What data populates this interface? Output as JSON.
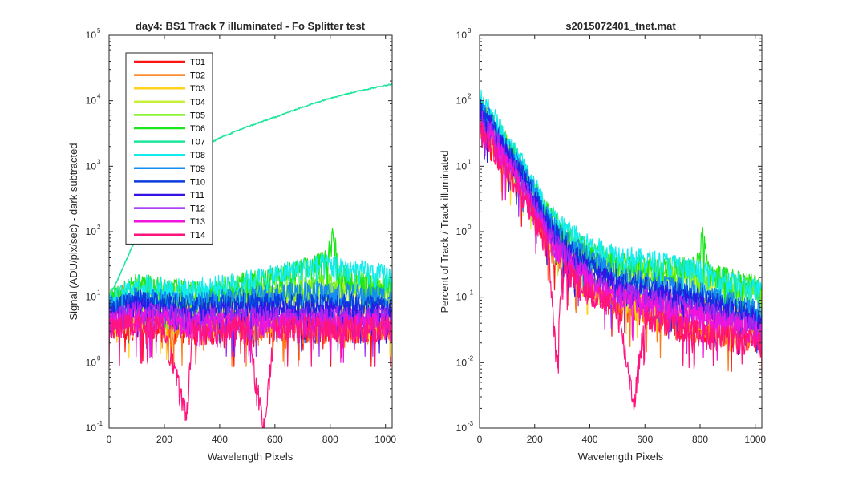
{
  "chart_data": [
    {
      "type": "line",
      "title": "day4: BS1  Track 7 illuminated - Fo Splitter test",
      "xlabel": "Wavelength Pixels",
      "ylabel": "Signal (ADU/pix/sec) - dark subtracted",
      "xlim": [
        0,
        1024
      ],
      "ylim": [
        0.1,
        100000
      ],
      "yscale": "log",
      "xticks": [
        0,
        200,
        400,
        600,
        800,
        1000
      ],
      "yticks": [
        {
          "base": "10",
          "exp": "-1",
          "value": 0.1
        },
        {
          "base": "10",
          "exp": "0",
          "value": 1
        },
        {
          "base": "10",
          "exp": "1",
          "value": 10
        },
        {
          "base": "10",
          "exp": "2",
          "value": 100
        },
        {
          "base": "10",
          "exp": "3",
          "value": 1000
        },
        {
          "base": "10",
          "exp": "4",
          "value": 10000
        },
        {
          "base": "10",
          "exp": "5",
          "value": 100000
        }
      ],
      "legend_position": "top-left",
      "grid": false,
      "series": [
        {
          "name": "T01",
          "color": "#ff1414",
          "x": [
            0,
            100,
            200,
            300,
            400,
            500,
            600,
            700,
            800,
            900,
            1024
          ],
          "values": [
            3.5,
            4,
            3.5,
            3.2,
            3.5,
            3.5,
            3.5,
            3.5,
            3.5,
            3.5,
            3.5
          ]
        },
        {
          "name": "T02",
          "color": "#ff7a14",
          "x": [
            0,
            40,
            100,
            200,
            300,
            400,
            500,
            600,
            700,
            800,
            900,
            1024
          ],
          "values": [
            4,
            12,
            5,
            4,
            3.5,
            3.5,
            3.5,
            3.5,
            3.5,
            3.5,
            3.5,
            3.5
          ]
        },
        {
          "name": "T03",
          "color": "#ffd21e",
          "x": [
            0,
            100,
            200,
            300,
            400,
            500,
            600,
            700,
            800,
            900,
            1024
          ],
          "values": [
            4,
            5,
            4.5,
            4,
            4.5,
            5,
            5,
            5,
            5,
            5,
            5
          ]
        },
        {
          "name": "T04",
          "color": "#c8f03c",
          "x": [
            0,
            100,
            200,
            300,
            400,
            500,
            600,
            700,
            800,
            900,
            1024
          ],
          "values": [
            6,
            9,
            8,
            7,
            8,
            9,
            10,
            11,
            12,
            12,
            11
          ]
        },
        {
          "name": "T05",
          "color": "#78f014",
          "x": [
            0,
            100,
            200,
            300,
            400,
            500,
            600,
            700,
            800,
            900,
            1024
          ],
          "values": [
            8,
            14,
            12,
            10,
            11,
            12,
            13,
            15,
            16,
            15,
            14
          ]
        },
        {
          "name": "T06",
          "color": "#1ee61e",
          "x": [
            0,
            100,
            200,
            300,
            400,
            500,
            600,
            700,
            780,
            800,
            810,
            830,
            900,
            1024
          ],
          "values": [
            10,
            16,
            14,
            12,
            14,
            17,
            21,
            27,
            35,
            60,
            100,
            25,
            20,
            16
          ]
        },
        {
          "name": "T07",
          "color": "#1ee69b",
          "x": [
            0,
            30,
            50,
            80,
            100,
            150,
            200,
            300,
            400,
            500,
            600,
            700,
            800,
            900,
            1024
          ],
          "values": [
            10,
            18,
            28,
            55,
            80,
            300,
            700,
            1600,
            2700,
            4000,
            5600,
            8000,
            11000,
            14000,
            18000
          ]
        },
        {
          "name": "T08",
          "color": "#14ebeb",
          "x": [
            0,
            100,
            200,
            300,
            400,
            500,
            600,
            700,
            800,
            900,
            1024
          ],
          "values": [
            8,
            16,
            14,
            13,
            15,
            18,
            22,
            28,
            32,
            26,
            21
          ]
        },
        {
          "name": "T09",
          "color": "#148cf0",
          "x": [
            0,
            100,
            200,
            300,
            400,
            500,
            600,
            700,
            800,
            900,
            1024
          ],
          "values": [
            7,
            10,
            9,
            8,
            9,
            10,
            11,
            12,
            12,
            11,
            10
          ]
        },
        {
          "name": "T10",
          "color": "#0a3cdc",
          "x": [
            0,
            100,
            200,
            300,
            400,
            500,
            600,
            700,
            800,
            900,
            1024
          ],
          "values": [
            6,
            9,
            8,
            7,
            8,
            8,
            8,
            8,
            8,
            8,
            7
          ]
        },
        {
          "name": "T11",
          "color": "#3214e6",
          "x": [
            0,
            100,
            200,
            300,
            400,
            500,
            600,
            700,
            800,
            900,
            1024
          ],
          "values": [
            5,
            7,
            6,
            5.5,
            6,
            6,
            6,
            6,
            6,
            6,
            5.5
          ]
        },
        {
          "name": "T12",
          "color": "#a028f0",
          "x": [
            0,
            100,
            200,
            300,
            400,
            500,
            600,
            700,
            800,
            900,
            1024
          ],
          "values": [
            4.5,
            6,
            5.5,
            5,
            5,
            5,
            5,
            5,
            5,
            5,
            5
          ]
        },
        {
          "name": "T13",
          "color": "#f014dc",
          "x": [
            0,
            100,
            200,
            300,
            400,
            500,
            600,
            700,
            800,
            900,
            1024
          ],
          "values": [
            4,
            5,
            4.5,
            4,
            4,
            4,
            4,
            4,
            4,
            4,
            4
          ]
        },
        {
          "name": "T14",
          "color": "#ff147d",
          "x": [
            0,
            100,
            200,
            280,
            300,
            400,
            500,
            560,
            600,
            700,
            800,
            900,
            1024
          ],
          "values": [
            3.5,
            4,
            3.5,
            0.14,
            3.2,
            3.5,
            3.5,
            0.1,
            3.5,
            3.5,
            3.5,
            3.5,
            3.5
          ]
        }
      ]
    },
    {
      "type": "line",
      "title": "s2015072401_tnet.mat",
      "xlabel": "Wavelength Pixels",
      "ylabel": "Percent of Track / Track illuminated",
      "xlim": [
        0,
        1024
      ],
      "ylim": [
        0.001,
        1000
      ],
      "yscale": "log",
      "xticks": [
        0,
        200,
        400,
        600,
        800,
        1000
      ],
      "yticks": [
        {
          "base": "10",
          "exp": "-3",
          "value": 0.001
        },
        {
          "base": "10",
          "exp": "-2",
          "value": 0.01
        },
        {
          "base": "10",
          "exp": "-1",
          "value": 0.1
        },
        {
          "base": "10",
          "exp": "0",
          "value": 1
        },
        {
          "base": "10",
          "exp": "1",
          "value": 10
        },
        {
          "base": "10",
          "exp": "2",
          "value": 100
        },
        {
          "base": "10",
          "exp": "3",
          "value": 1000
        }
      ],
      "grid": false,
      "series": [
        {
          "name": "T01",
          "color": "#ff1414",
          "x": [
            0,
            50,
            100,
            150,
            200,
            250,
            300,
            400,
            500,
            600,
            700,
            800,
            900,
            1024
          ],
          "values": [
            35,
            20,
            10,
            5,
            2,
            0.7,
            0.35,
            0.15,
            0.08,
            0.06,
            0.04,
            0.035,
            0.03,
            0.025
          ]
        },
        {
          "name": "T02",
          "color": "#ff7a14",
          "x": [
            0,
            30,
            50,
            100,
            150,
            200,
            250,
            300,
            400,
            500,
            600,
            700,
            800,
            900,
            1024
          ],
          "values": [
            40,
            60,
            25,
            10,
            5,
            2,
            0.7,
            0.35,
            0.15,
            0.08,
            0.06,
            0.04,
            0.035,
            0.03,
            0.025
          ]
        },
        {
          "name": "T03",
          "color": "#ffd21e",
          "x": [
            0,
            50,
            100,
            150,
            200,
            250,
            300,
            400,
            500,
            600,
            700,
            800,
            900,
            1024
          ],
          "values": [
            45,
            25,
            12,
            6,
            2.5,
            0.9,
            0.45,
            0.2,
            0.12,
            0.09,
            0.08,
            0.07,
            0.06,
            0.05
          ]
        },
        {
          "name": "T04",
          "color": "#c8f03c",
          "x": [
            0,
            50,
            100,
            150,
            200,
            250,
            300,
            400,
            500,
            600,
            700,
            800,
            900,
            1024
          ],
          "values": [
            60,
            35,
            16,
            8,
            3.5,
            1.3,
            0.7,
            0.35,
            0.25,
            0.22,
            0.2,
            0.18,
            0.15,
            0.1
          ]
        },
        {
          "name": "T05",
          "color": "#78f014",
          "x": [
            0,
            50,
            100,
            150,
            200,
            250,
            300,
            400,
            500,
            600,
            700,
            800,
            900,
            1024
          ],
          "values": [
            70,
            40,
            20,
            10,
            4,
            1.6,
            0.9,
            0.45,
            0.3,
            0.27,
            0.25,
            0.22,
            0.18,
            0.12
          ]
        },
        {
          "name": "T06",
          "color": "#1ee61e",
          "x": [
            0,
            50,
            100,
            150,
            200,
            250,
            300,
            400,
            500,
            600,
            700,
            780,
            800,
            810,
            830,
            900,
            1024
          ],
          "values": [
            80,
            45,
            22,
            11,
            4.5,
            1.8,
            1,
            0.5,
            0.35,
            0.3,
            0.28,
            0.3,
            0.5,
            0.9,
            0.25,
            0.2,
            0.15
          ]
        },
        {
          "name": "T08",
          "color": "#14ebeb",
          "x": [
            0,
            50,
            100,
            150,
            200,
            250,
            300,
            400,
            500,
            600,
            700,
            800,
            900,
            1024
          ],
          "values": [
            120,
            60,
            25,
            12,
            5,
            2,
            1.2,
            0.6,
            0.45,
            0.38,
            0.32,
            0.25,
            0.18,
            0.12
          ]
        },
        {
          "name": "T09",
          "color": "#148cf0",
          "x": [
            0,
            50,
            100,
            150,
            200,
            250,
            300,
            400,
            500,
            600,
            700,
            800,
            900,
            1024
          ],
          "values": [
            90,
            45,
            20,
            9,
            4,
            1.5,
            0.8,
            0.4,
            0.22,
            0.18,
            0.15,
            0.12,
            0.09,
            0.06
          ]
        },
        {
          "name": "T10",
          "color": "#0a3cdc",
          "x": [
            0,
            50,
            100,
            150,
            200,
            250,
            300,
            400,
            500,
            600,
            700,
            800,
            900,
            1024
          ],
          "values": [
            75,
            40,
            18,
            8,
            3.5,
            1.3,
            0.7,
            0.3,
            0.18,
            0.14,
            0.12,
            0.1,
            0.07,
            0.05
          ]
        },
        {
          "name": "T11",
          "color": "#3214e6",
          "x": [
            0,
            50,
            100,
            150,
            200,
            250,
            300,
            400,
            500,
            600,
            700,
            800,
            900,
            1024
          ],
          "values": [
            65,
            35,
            15,
            7,
            3,
            1.1,
            0.6,
            0.25,
            0.15,
            0.12,
            0.1,
            0.08,
            0.06,
            0.04
          ]
        },
        {
          "name": "T12",
          "color": "#a028f0",
          "x": [
            0,
            50,
            100,
            150,
            200,
            250,
            300,
            400,
            500,
            600,
            700,
            800,
            900,
            1024
          ],
          "values": [
            55,
            30,
            13,
            6,
            2.5,
            0.9,
            0.5,
            0.2,
            0.12,
            0.1,
            0.08,
            0.06,
            0.05,
            0.035
          ]
        },
        {
          "name": "T13",
          "color": "#f014dc",
          "x": [
            0,
            50,
            100,
            150,
            200,
            250,
            300,
            400,
            500,
            600,
            700,
            800,
            900,
            1024
          ],
          "values": [
            45,
            25,
            11,
            5,
            2,
            0.75,
            0.4,
            0.17,
            0.1,
            0.08,
            0.06,
            0.05,
            0.04,
            0.03
          ]
        },
        {
          "name": "T14",
          "color": "#ff147d",
          "x": [
            0,
            50,
            100,
            150,
            200,
            250,
            280,
            300,
            400,
            500,
            560,
            600,
            700,
            800,
            900,
            1024
          ],
          "values": [
            35,
            20,
            9,
            4,
            1.6,
            0.6,
            0.01,
            0.3,
            0.12,
            0.07,
            0.0025,
            0.05,
            0.04,
            0.03,
            0.025,
            0.02
          ]
        }
      ]
    }
  ]
}
